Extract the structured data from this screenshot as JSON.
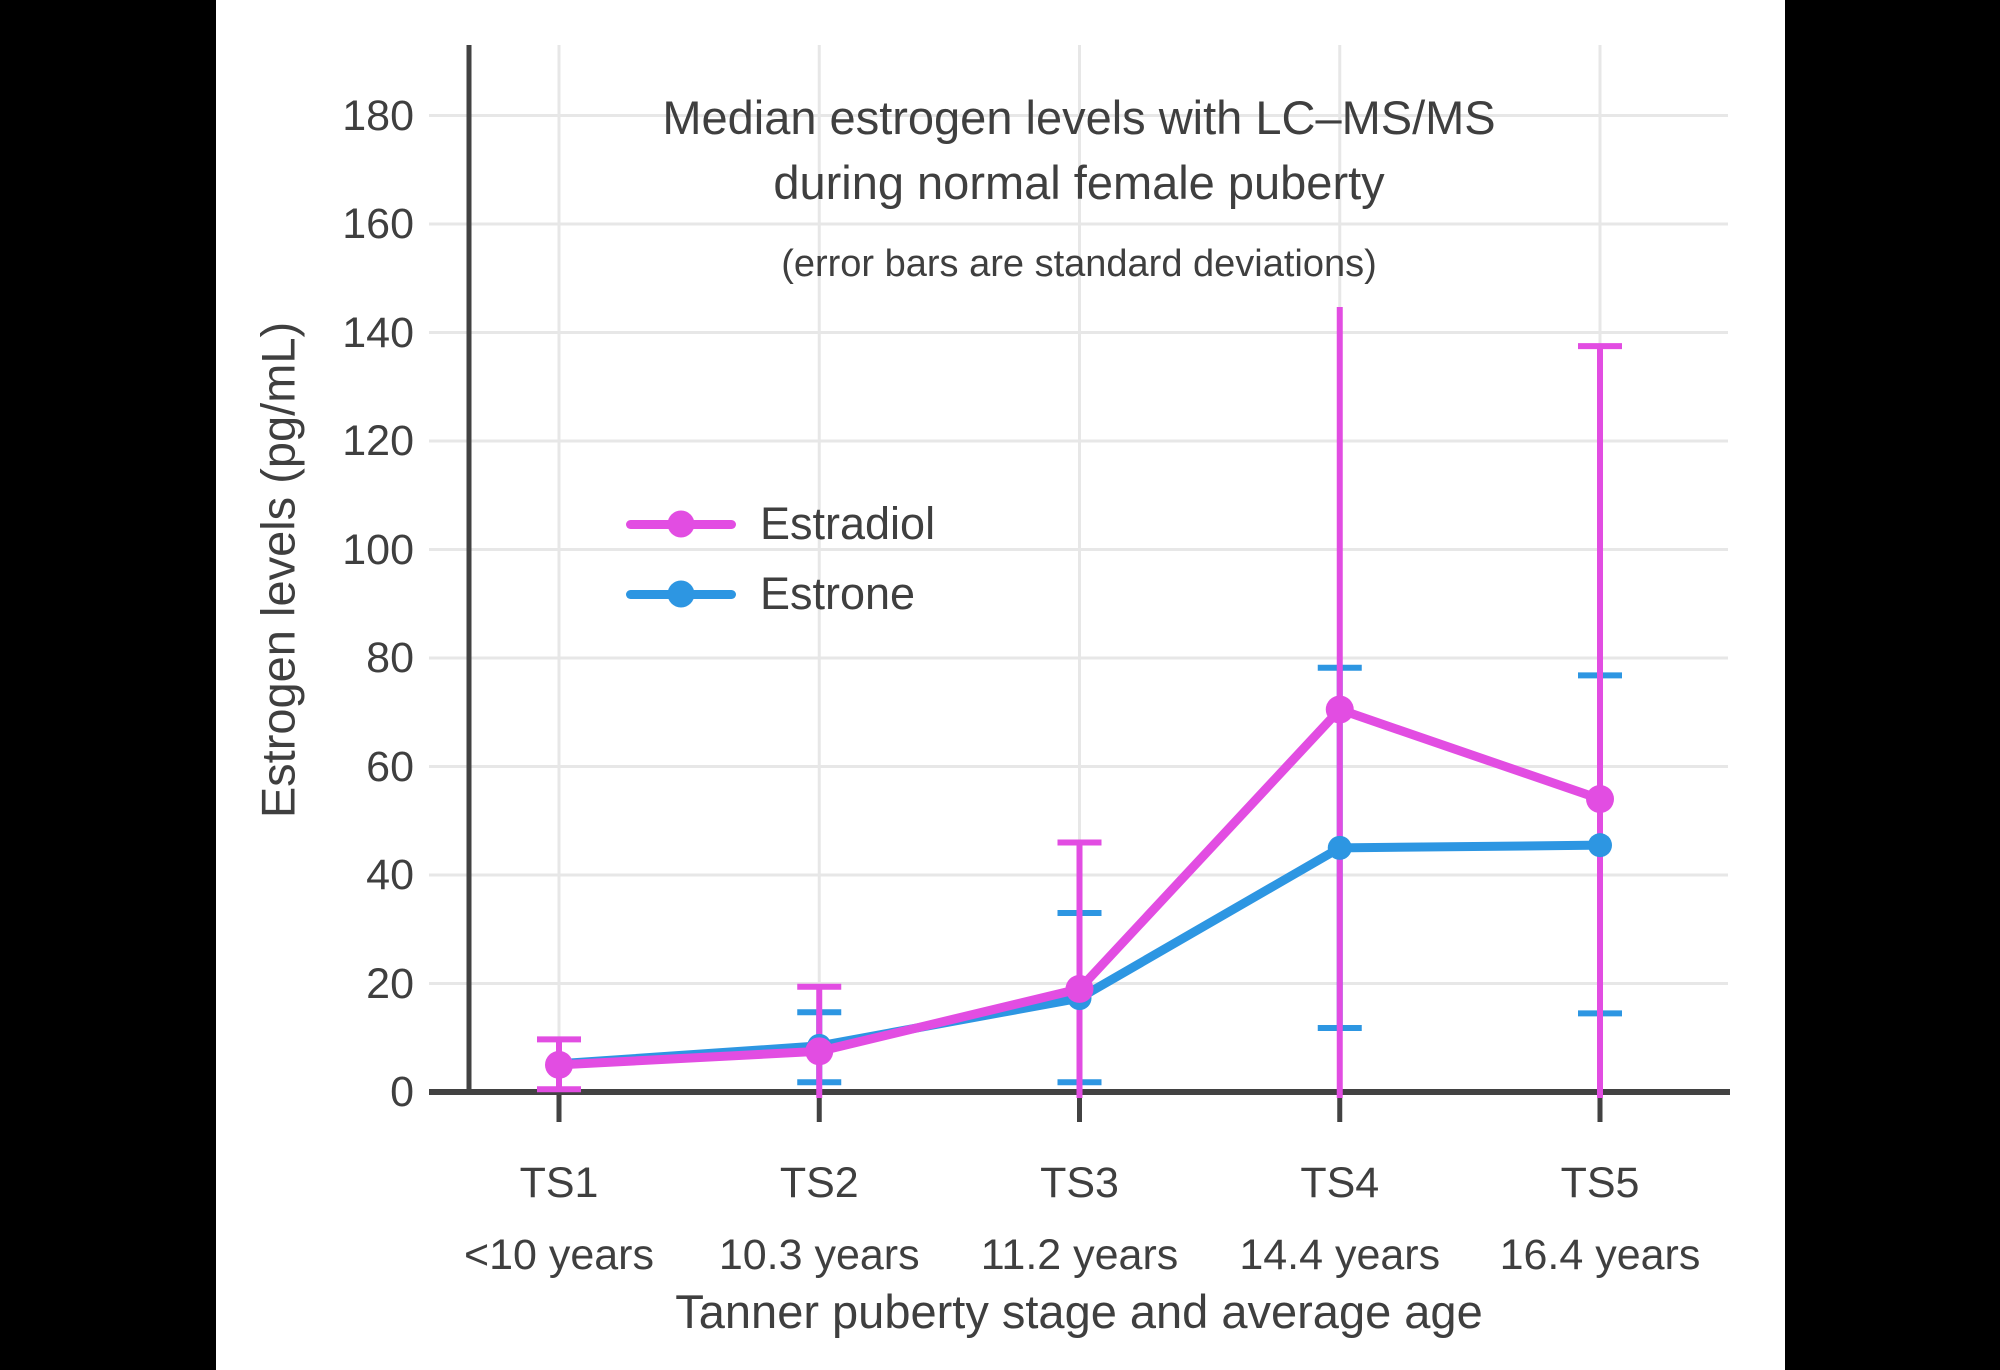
{
  "colors": {
    "background_bars": "#000000",
    "canvas": "#ffffff",
    "text": "#3F3F3F",
    "axis": "#424242",
    "grid": "#E7E7E7",
    "estradiol": "#E24DE2",
    "estrone": "#2D96E2"
  },
  "chart_data": {
    "type": "line",
    "title_line1": "Median estrogen levels with LC–MS/MS",
    "title_line2": "during normal female puberty",
    "subtitle": "(error bars are standard deviations)",
    "xlabel": "Tanner puberty stage and average age",
    "ylabel": "Estrogen levels (pg/mL)",
    "categories": [
      "TS1",
      "TS2",
      "TS3",
      "TS4",
      "TS5"
    ],
    "category_ages": [
      "<10 years",
      "10.3 years",
      "11.2 years",
      "14.4 years",
      "16.4 years"
    ],
    "y_ticks": [
      0,
      20,
      40,
      60,
      80,
      100,
      120,
      140,
      160,
      180
    ],
    "ylim": [
      0,
      193
    ],
    "grid": true,
    "legend_position": "upper-left-inside",
    "units": "pg/mL",
    "series": [
      {
        "name": "Estrone",
        "color": "#2D96E2",
        "values": [
          5.2,
          8.5,
          17.3,
          45,
          45.5
        ],
        "err_low": [
          null,
          1.8,
          1.8,
          11.8,
          14.5
        ],
        "err_high": [
          null,
          14.7,
          33,
          78.2,
          76.8
        ],
        "caps_low": [
          false,
          true,
          true,
          true,
          true
        ],
        "caps_high": [
          false,
          true,
          true,
          true,
          true
        ],
        "err_low_clipped": [
          false,
          false,
          false,
          false,
          false
        ]
      },
      {
        "name": "Estradiol",
        "color": "#E24DE2",
        "values": [
          5,
          7.5,
          19,
          70.5,
          54
        ],
        "err_low": [
          0.5,
          null,
          null,
          null,
          null
        ],
        "err_high": [
          9.7,
          19.4,
          46,
          144.7,
          137.5
        ],
        "caps_low": [
          true,
          false,
          false,
          false,
          false
        ],
        "caps_high": [
          true,
          true,
          true,
          false,
          true
        ],
        "err_low_clipped": [
          false,
          true,
          true,
          true,
          true
        ]
      }
    ]
  },
  "legend": {
    "first_label": "Estradiol",
    "second_label": "Estrone"
  }
}
